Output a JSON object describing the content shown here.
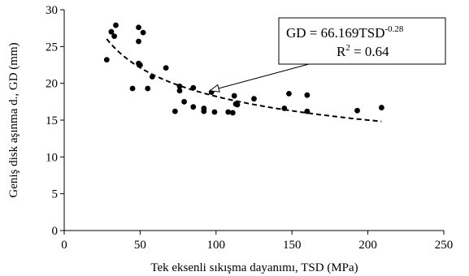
{
  "chart_data": {
    "type": "scatter",
    "title": "",
    "xlabel": "Tek eksenli sıkışma dayanımı, TSD (MPa)",
    "ylabel": "Geniş disk aşınma d., GD (mm)",
    "xlim": [
      0,
      250
    ],
    "ylim": [
      0,
      30
    ],
    "x_ticks": [
      0,
      50,
      100,
      150,
      200,
      250
    ],
    "y_ticks": [
      0,
      5,
      10,
      15,
      20,
      25,
      30
    ],
    "grid": false,
    "legend": "none",
    "series": [
      {
        "marker": "circle",
        "color": "#000000",
        "points": [
          [
            28,
            23.2
          ],
          [
            31,
            27.0
          ],
          [
            33,
            26.4
          ],
          [
            34,
            27.9
          ],
          [
            45,
            19.3
          ],
          [
            49,
            27.6
          ],
          [
            49,
            25.7
          ],
          [
            49,
            22.7
          ],
          [
            50,
            22.5
          ],
          [
            52,
            26.9
          ],
          [
            55,
            19.3
          ],
          [
            58,
            20.9
          ],
          [
            67,
            22.1
          ],
          [
            73,
            16.2
          ],
          [
            76,
            19.6
          ],
          [
            76,
            19.0
          ],
          [
            79,
            17.5
          ],
          [
            85,
            16.8
          ],
          [
            85,
            19.4
          ],
          [
            92,
            16.6
          ],
          [
            92,
            16.2
          ],
          [
            97,
            18.8
          ],
          [
            99,
            16.1
          ],
          [
            108,
            16.1
          ],
          [
            111,
            16.0
          ],
          [
            112,
            18.3
          ],
          [
            113,
            17.2
          ],
          [
            114,
            17.1
          ],
          [
            125,
            17.9
          ],
          [
            145,
            16.6
          ],
          [
            148,
            18.6
          ],
          [
            160,
            16.2
          ],
          [
            160,
            18.4
          ],
          [
            193,
            16.3
          ],
          [
            209,
            16.7
          ]
        ]
      }
    ],
    "trendline": {
      "style": "dashed",
      "coefficient": 66.169,
      "exponent": -0.28,
      "x_range": [
        28,
        209
      ]
    },
    "annotation": {
      "line1_prefix": "GD = 66.169TSD",
      "line1_sup": "-0.28",
      "line2_prefix": "R",
      "line2_sup": "2",
      "line2_suffix": " = 0.64",
      "arrow_target": [
        96,
        19.0
      ]
    }
  }
}
